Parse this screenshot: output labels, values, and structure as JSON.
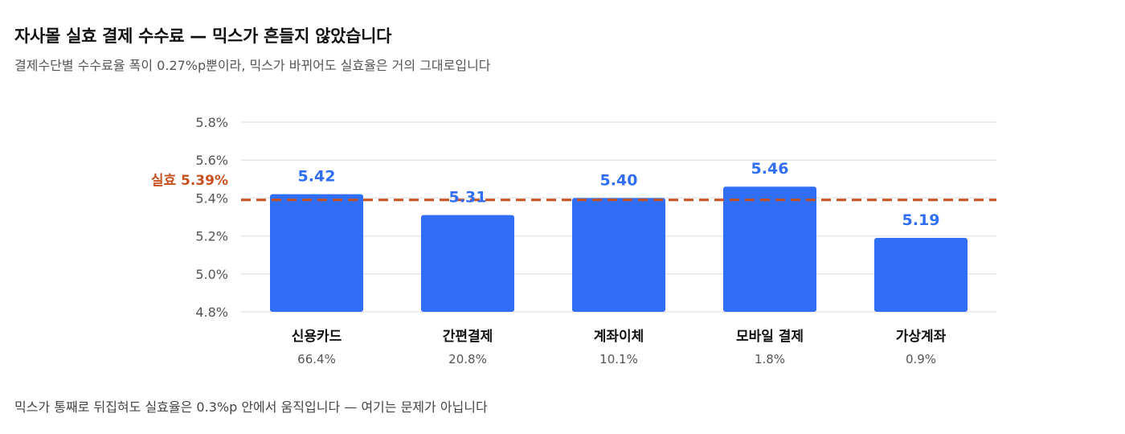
{
  "title": "자사몰 실효 결제 수수료 — 믹스가 흔들지 않았습니다",
  "subtitle": "결제수단별 수수료율 폭이 0.27%p뿐이라, 믹스가 바뀌어도 실효율은 거의 그대로입니다",
  "footnote": "믹스가 통째로 뒤집혀도 실효율은 0.3%p 안에서 움직입니다 — 여기는 문제가 아닙니다",
  "colors": {
    "bar": "#2f6ef5",
    "value_label": "#2f6ef5",
    "reference": "#c8501e",
    "grid": "#e5e5e5"
  },
  "chart_data": {
    "type": "bar",
    "categories": [
      "신용카드",
      "간편결제",
      "계좌이체",
      "모바일 결제",
      "가상계좌"
    ],
    "values": [
      5.42,
      5.31,
      5.4,
      5.46,
      5.19
    ],
    "value_labels": [
      "5.42",
      "5.31",
      "5.40",
      "5.46",
      "5.19"
    ],
    "share_labels": [
      "66.4%",
      "20.8%",
      "10.1%",
      "1.8%",
      "0.9%"
    ],
    "ylim": [
      4.8,
      5.8
    ],
    "yticks": [
      4.8,
      5.0,
      5.2,
      5.4,
      5.6,
      5.8
    ],
    "ytick_labels": [
      "4.8%",
      "5.0%",
      "5.2%",
      "5.4%",
      "5.6%",
      "5.8%"
    ],
    "grid": true,
    "reference_line": {
      "value": 5.39,
      "label": "실효 5.39%",
      "style": "dashed"
    }
  }
}
